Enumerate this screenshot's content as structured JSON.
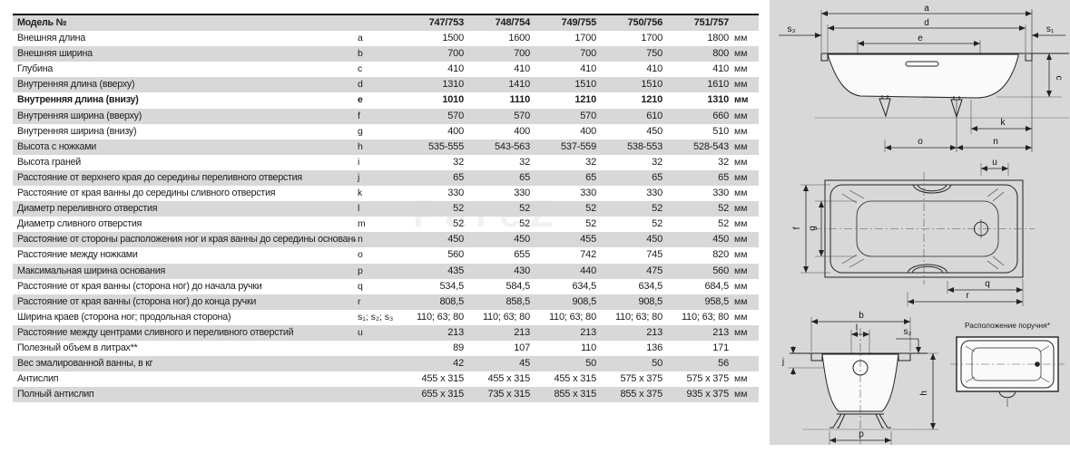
{
  "watermark": "FareZ",
  "table": {
    "header": {
      "label": "Модель №",
      "models": [
        "747/753",
        "748/754",
        "749/755",
        "750/756",
        "751/757"
      ]
    },
    "rows": [
      {
        "label": "Внешняя длина",
        "letter": "a",
        "values": [
          "1500",
          "1600",
          "1700",
          "1700",
          "1800"
        ],
        "unit": "мм",
        "bold": false
      },
      {
        "label": "Внешняя ширина",
        "letter": "b",
        "values": [
          "700",
          "700",
          "700",
          "750",
          "800"
        ],
        "unit": "мм",
        "bold": false
      },
      {
        "label": "Глубина",
        "letter": "c",
        "values": [
          "410",
          "410",
          "410",
          "410",
          "410"
        ],
        "unit": "мм",
        "bold": false
      },
      {
        "label": "Внутренняя длина (вверху)",
        "letter": "d",
        "values": [
          "1310",
          "1410",
          "1510",
          "1510",
          "1610"
        ],
        "unit": "мм",
        "bold": false
      },
      {
        "label": "Внутренняя длина (внизу)",
        "letter": "e",
        "values": [
          "1010",
          "1110",
          "1210",
          "1210",
          "1310"
        ],
        "unit": "мм",
        "bold": true
      },
      {
        "label": "Внутренняя ширина (вверху)",
        "letter": "f",
        "values": [
          "570",
          "570",
          "570",
          "610",
          "660"
        ],
        "unit": "мм",
        "bold": false
      },
      {
        "label": "Внутренняя ширина (внизу)",
        "letter": "g",
        "values": [
          "400",
          "400",
          "400",
          "450",
          "510"
        ],
        "unit": "мм",
        "bold": false
      },
      {
        "label": "Высота с ножками",
        "letter": "h",
        "values": [
          "535-555",
          "543-563",
          "537-559",
          "538-553",
          "528-543"
        ],
        "unit": "мм",
        "bold": false
      },
      {
        "label": "Высота граней",
        "letter": "i",
        "values": [
          "32",
          "32",
          "32",
          "32",
          "32"
        ],
        "unit": "мм",
        "bold": false
      },
      {
        "label": "Расстояние от верхнего края до середины переливного отверстия",
        "letter": "j",
        "values": [
          "65",
          "65",
          "65",
          "65",
          "65"
        ],
        "unit": "мм",
        "bold": false
      },
      {
        "label": "Расстояние от края ванны до середины сливного отверстия",
        "letter": "k",
        "values": [
          "330",
          "330",
          "330",
          "330",
          "330"
        ],
        "unit": "мм",
        "bold": false
      },
      {
        "label": "Диаметр переливного отверстия",
        "letter": "l",
        "values": [
          "52",
          "52",
          "52",
          "52",
          "52"
        ],
        "unit": "мм",
        "bold": false
      },
      {
        "label": "Диаметр сливного отверстия",
        "letter": "m",
        "values": [
          "52",
          "52",
          "52",
          "52",
          "52"
        ],
        "unit": "мм",
        "bold": false
      },
      {
        "label": "Расстояние от стороны расположения ног и края ванны до середины основания",
        "letter": "n",
        "values": [
          "450",
          "450",
          "455",
          "450",
          "450"
        ],
        "unit": "мм",
        "bold": false
      },
      {
        "label": "Расстояние между ножками",
        "letter": "o",
        "values": [
          "560",
          "655",
          "742",
          "745",
          "820"
        ],
        "unit": "мм",
        "bold": false
      },
      {
        "label": "Максимальная ширина основания",
        "letter": "p",
        "values": [
          "435",
          "430",
          "440",
          "475",
          "560"
        ],
        "unit": "мм",
        "bold": false
      },
      {
        "label": "Расстояние от края ванны (сторона ног) до начала ручки",
        "letter": "q",
        "values": [
          "534,5",
          "584,5",
          "634,5",
          "634,5",
          "684,5"
        ],
        "unit": "мм",
        "bold": false
      },
      {
        "label": "Расстояние от края ванны (сторона ног) до конца ручки",
        "letter": "r",
        "values": [
          "808,5",
          "858,5",
          "908,5",
          "908,5",
          "958,5"
        ],
        "unit": "мм",
        "bold": false
      },
      {
        "label": "Ширина краев (сторона ног; продольная сторона)",
        "letter": "s₁; s₂; s₃",
        "values": [
          "110; 63; 80",
          "110; 63; 80",
          "110; 63; 80",
          "110; 63; 80",
          "110; 63; 80"
        ],
        "unit": "мм",
        "bold": false
      },
      {
        "label": "Расстояние между центрами сливного и переливного отверстий",
        "letter": "u",
        "values": [
          "213",
          "213",
          "213",
          "213",
          "213"
        ],
        "unit": "мм",
        "bold": false
      },
      {
        "label": "Полезный объем в литрах**",
        "letter": "",
        "values": [
          "89",
          "107",
          "110",
          "136",
          "171"
        ],
        "unit": "",
        "bold": false
      },
      {
        "label": "Вес эмалированной ванны, в кг",
        "letter": "",
        "values": [
          "42",
          "45",
          "50",
          "50",
          "56"
        ],
        "unit": "",
        "bold": false
      },
      {
        "label": "Антислип",
        "letter": "",
        "values": [
          "455 x 315",
          "455 x 315",
          "455 x 315",
          "575 x 375",
          "575 x 375"
        ],
        "unit": "мм",
        "bold": false
      },
      {
        "label": "Полный антислип",
        "letter": "",
        "values": [
          "655 x 315",
          "735 x 315",
          "855 x 315",
          "855 x 375",
          "935 x 375"
        ],
        "unit": "мм",
        "bold": false
      }
    ]
  },
  "diagrams": {
    "side_view": {
      "labels": {
        "a": "a",
        "d": "d",
        "e": "e",
        "s3": "s₃",
        "s1": "s₁",
        "c": "c",
        "k": "k",
        "o": "o",
        "n": "n"
      }
    },
    "top_view": {
      "labels": {
        "u": "u",
        "f": "f",
        "g": "g",
        "q": "q",
        "r": "r"
      }
    },
    "end_view": {
      "labels": {
        "b": "b",
        "l": "l",
        "s2": "s₂",
        "j": "j",
        "h": "h",
        "p": "p"
      }
    },
    "handle_view": {
      "title": "Расположение поручня*"
    }
  }
}
